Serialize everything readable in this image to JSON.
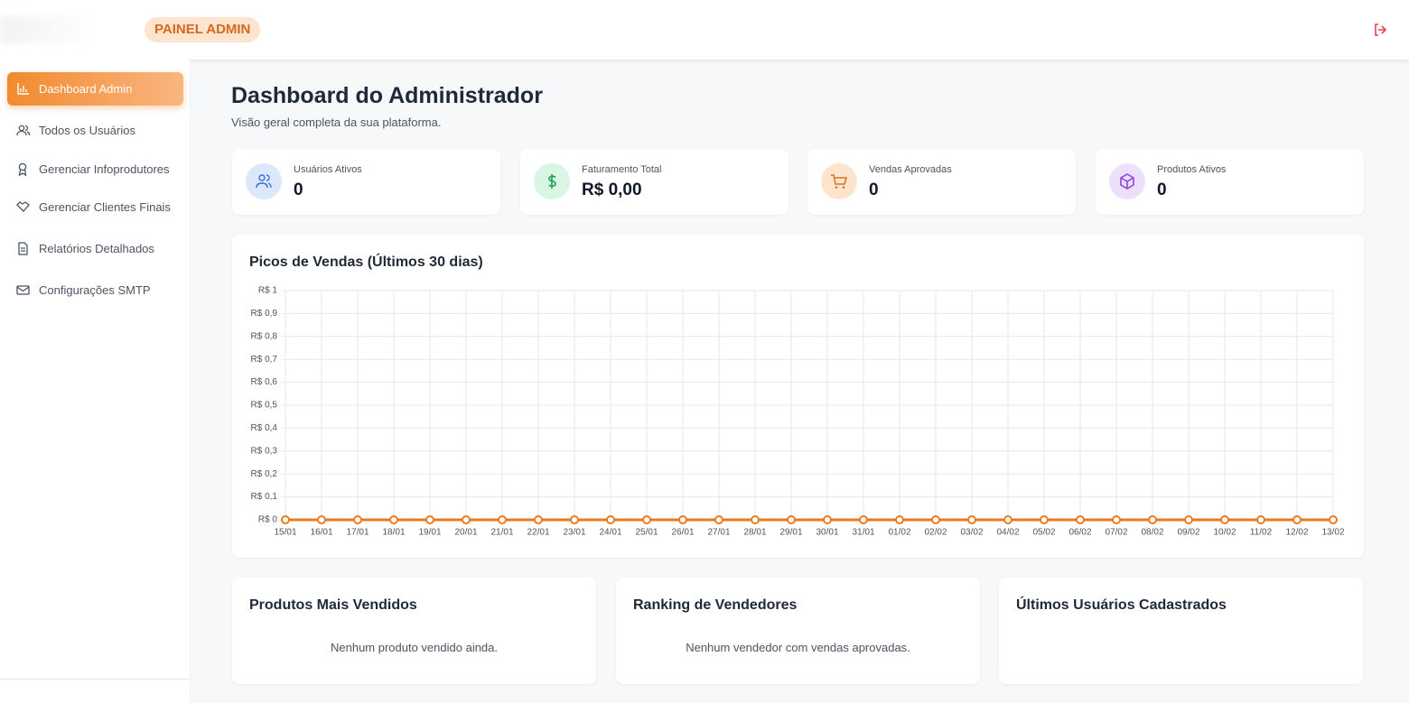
{
  "header": {
    "badge": "PAINEL ADMIN"
  },
  "sidebar": {
    "items": [
      "Dashboard Admin",
      "Todos os Usuários",
      "Gerenciar Infoprodutores",
      "Gerenciar Clientes Finais",
      "Relatórios Detalhados",
      "Configurações SMTP"
    ]
  },
  "page": {
    "title": "Dashboard do Administrador",
    "subtitle": "Visão geral completa da sua plataforma."
  },
  "stats": [
    {
      "label": "Usuários Ativos",
      "value": 0
    },
    {
      "label": "Faturamento Total",
      "value": "R$ 0,00"
    },
    {
      "label": "Vendas Aprovadas",
      "value": 0
    },
    {
      "label": "Produtos Ativos",
      "value": 0
    }
  ],
  "chart_data": {
    "type": "line",
    "title": "Picos de Vendas (Últimos 30 dias)",
    "categories": [
      "15/01",
      "16/01",
      "17/01",
      "18/01",
      "19/01",
      "20/01",
      "21/01",
      "22/01",
      "23/01",
      "24/01",
      "25/01",
      "26/01",
      "27/01",
      "28/01",
      "29/01",
      "30/01",
      "31/01",
      "01/02",
      "02/02",
      "03/02",
      "04/02",
      "05/02",
      "06/02",
      "07/02",
      "08/02",
      "09/02",
      "10/02",
      "11/02",
      "12/02",
      "13/02"
    ],
    "values": [
      0,
      0,
      0,
      0,
      0,
      0,
      0,
      0,
      0,
      0,
      0,
      0,
      0,
      0,
      0,
      0,
      0,
      0,
      0,
      0,
      0,
      0,
      0,
      0,
      0,
      0,
      0,
      0,
      0,
      0
    ],
    "color": "#ea7a1f",
    "grid": true,
    "ylim": [
      0,
      1
    ],
    "yticks": [
      {
        "value": 0,
        "label": "R$ 0"
      },
      {
        "value": 0.1,
        "label": "R$ 0,1"
      },
      {
        "value": 0.2,
        "label": "R$ 0,2"
      },
      {
        "value": 0.3,
        "label": "R$ 0,3"
      },
      {
        "value": 0.4,
        "label": "R$ 0,4"
      },
      {
        "value": 0.5,
        "label": "R$ 0,5"
      },
      {
        "value": 0.6,
        "label": "R$ 0,6"
      },
      {
        "value": 0.7,
        "label": "R$ 0,7"
      },
      {
        "value": 0.8,
        "label": "R$ 0,8"
      },
      {
        "value": 0.9,
        "label": "R$ 0,9"
      },
      {
        "value": 1,
        "label": "R$ 1"
      }
    ]
  },
  "panels": [
    {
      "title": "Produtos Mais Vendidos",
      "empty": "Nenhum produto vendido ainda."
    },
    {
      "title": "Ranking de Vendedores",
      "empty": "Nenhum vendedor com vendas aprovadas."
    },
    {
      "title": "Últimos Usuários Cadastrados"
    }
  ]
}
